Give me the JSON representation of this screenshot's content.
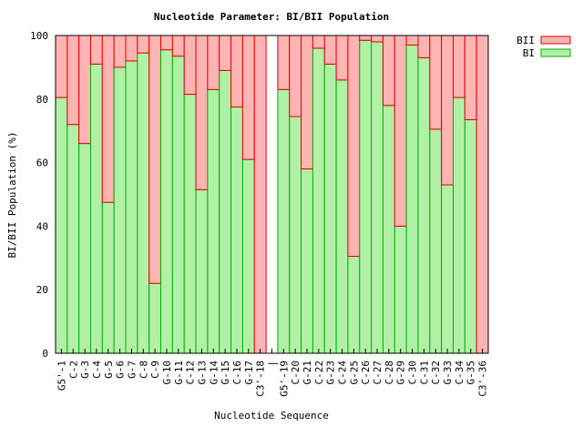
{
  "chart_data": {
    "type": "bar",
    "stacked": true,
    "title": "Nucleotide Parameter: BI/BII Population",
    "xlabel": "Nucleotide Sequence",
    "ylabel": "BI/BII Population (%)",
    "ylim": [
      0,
      100
    ],
    "yticks": [
      0,
      20,
      40,
      60,
      80,
      100
    ],
    "legend_position": "outside-top-right",
    "categories": [
      "G5'-1",
      "C-2",
      "G-3",
      "C-4",
      "G-5",
      "G-6",
      "G-7",
      "C-8",
      "C-9",
      "G-10",
      "G-11",
      "C-12",
      "G-13",
      "G-14",
      "G-15",
      "C-16",
      "G-17",
      "C3'-18",
      "|",
      "G5'-19",
      "C-20",
      "G-21",
      "C-22",
      "G-23",
      "C-24",
      "G-25",
      "C-26",
      "C-27",
      "C-28",
      "G-29",
      "C-30",
      "C-31",
      "C-32",
      "G-33",
      "C-34",
      "G-35",
      "C3'-36"
    ],
    "series": [
      {
        "name": "BI",
        "color": "#b2f0a8",
        "edge": "#00b000",
        "values": [
          80.5,
          72,
          66,
          91,
          47.5,
          90,
          92,
          94.5,
          22,
          95.5,
          93.5,
          81.5,
          51.5,
          83,
          89,
          77.5,
          61,
          0,
          null,
          83,
          74.5,
          58,
          96,
          91,
          86,
          30.5,
          98.5,
          98,
          78,
          40,
          97,
          93,
          70.5,
          53,
          80.5,
          73.5,
          0
        ]
      },
      {
        "name": "BII",
        "color": "#ffb4b4",
        "edge": "#e00000",
        "values": [
          19.5,
          28,
          34,
          9,
          52.5,
          10,
          8,
          5.5,
          78,
          4.5,
          6.5,
          18.5,
          48.5,
          17,
          11,
          22.5,
          39,
          100,
          null,
          17,
          25.5,
          42,
          4,
          9,
          14,
          69.5,
          1.5,
          2,
          22,
          60,
          3,
          7,
          29.5,
          47,
          19.5,
          26.5,
          100
        ]
      }
    ]
  }
}
